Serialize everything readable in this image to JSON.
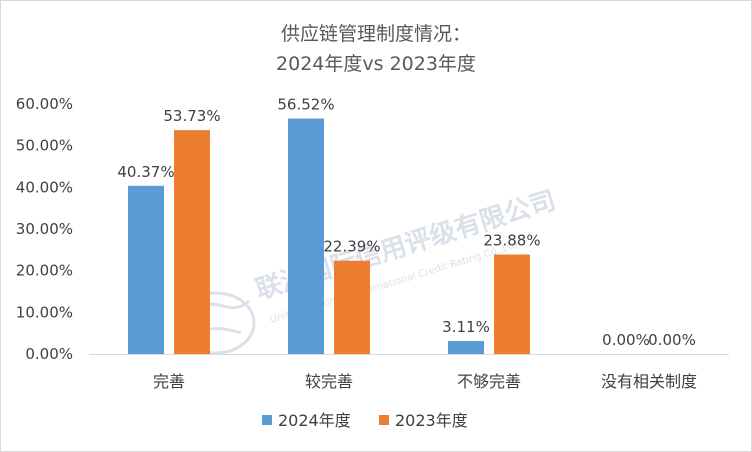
{
  "chart_data": {
    "type": "bar",
    "title": [
      "供应链管理制度情况：",
      "2024年度vs 2023年度"
    ],
    "categories": [
      "完善",
      "较完善",
      "不够完善",
      "没有相关制度"
    ],
    "series": [
      {
        "name": "2024年度",
        "color": "#5b9bd5",
        "values": [
          40.37,
          56.52,
          3.11,
          0.0
        ],
        "labels": [
          "40.37%",
          "56.52%",
          "3.11%",
          "0.00%"
        ]
      },
      {
        "name": "2023年度",
        "color": "#ed7d31",
        "values": [
          53.73,
          22.39,
          23.88,
          0.0
        ],
        "labels": [
          "53.73%",
          "22.39%",
          "23.88%",
          "0.00%"
        ]
      }
    ],
    "ylim": [
      0,
      60
    ],
    "y_ticks": [
      0,
      10,
      20,
      30,
      40,
      50,
      60
    ],
    "y_tick_labels": [
      "0.00%",
      "10.00%",
      "20.00%",
      "30.00%",
      "40.00%",
      "50.00%",
      "60.00%"
    ],
    "grid": false,
    "legend_position": "bottom"
  },
  "watermark": {
    "main": "联洲国际信用评级有限公司",
    "sub": "United Continent International Credit Rating Co.,Ltd"
  }
}
